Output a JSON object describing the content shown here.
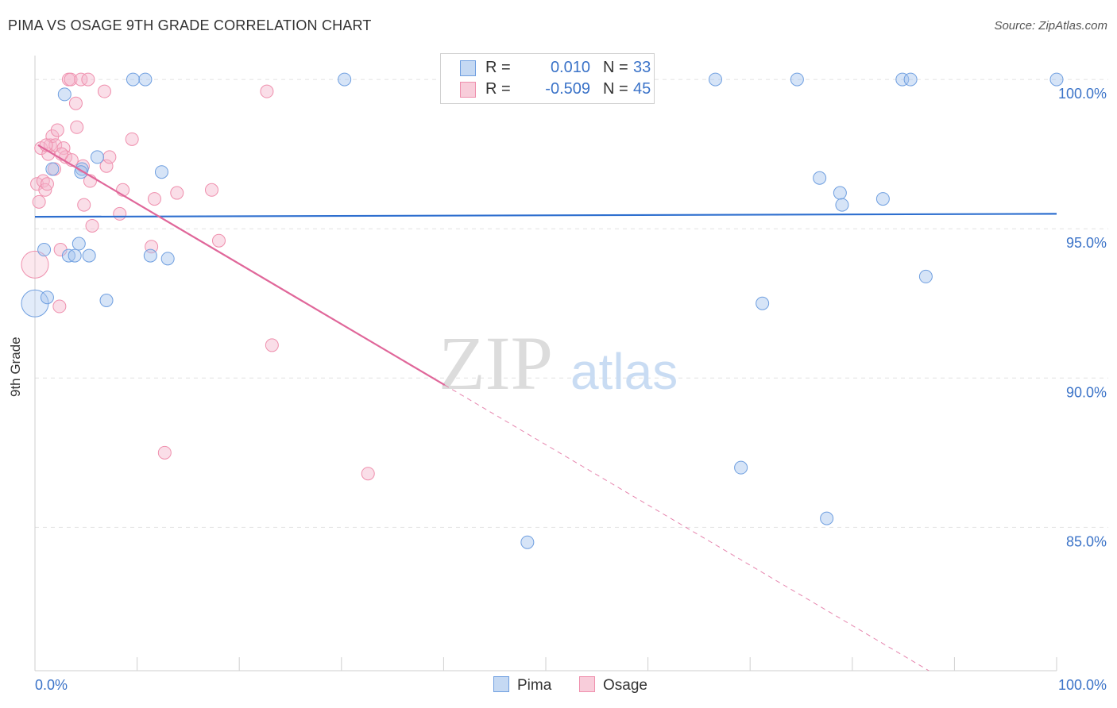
{
  "title": "PIMA VS OSAGE 9TH GRADE CORRELATION CHART",
  "source": "Source: ZipAtlas.com",
  "watermark": {
    "zip": "ZIP",
    "atlas": "atlas"
  },
  "legend": {
    "pima": {
      "r_label": "R =",
      "r_value": "0.010",
      "n_label": "N =",
      "n_value": "33"
    },
    "osage": {
      "r_label": "R =",
      "r_value": "-0.509",
      "n_label": "N =",
      "n_value": "45"
    }
  },
  "chart_data": {
    "type": "scatter",
    "title": "PIMA VS OSAGE 9TH GRADE CORRELATION CHART",
    "xlabel": "",
    "ylabel": "9th Grade",
    "xlim": [
      0,
      100
    ],
    "ylim": [
      80.2,
      100.8
    ],
    "x_tick_labels": [
      "0.0%",
      "100.0%"
    ],
    "y_ticks": [
      {
        "value": 100,
        "label": "100.0%"
      },
      {
        "value": 95,
        "label": "95.0%"
      },
      {
        "value": 90,
        "label": "90.0%"
      },
      {
        "value": 85,
        "label": "85.0%"
      }
    ],
    "colors": {
      "pima": "#6f9fe0",
      "osage": "#ef8fad",
      "pima_line": "#2e6fcf",
      "osage_line": "#e0679a"
    },
    "series": [
      {
        "name": "Pima",
        "trend": {
          "x0": 0,
          "y0": 95.4,
          "x1": 100,
          "y1": 95.5,
          "dash_from": null
        },
        "points": [
          {
            "x": 0.0,
            "y": 92.5,
            "big": true
          },
          {
            "x": 0.9,
            "y": 94.3
          },
          {
            "x": 1.2,
            "y": 92.7
          },
          {
            "x": 2.9,
            "y": 99.5
          },
          {
            "x": 1.7,
            "y": 97.0
          },
          {
            "x": 4.6,
            "y": 97.0
          },
          {
            "x": 3.3,
            "y": 94.1
          },
          {
            "x": 3.9,
            "y": 94.1
          },
          {
            "x": 5.3,
            "y": 94.1
          },
          {
            "x": 6.1,
            "y": 97.4
          },
          {
            "x": 4.3,
            "y": 94.5
          },
          {
            "x": 7.0,
            "y": 92.6
          },
          {
            "x": 9.6,
            "y": 100.0
          },
          {
            "x": 10.8,
            "y": 100.0
          },
          {
            "x": 11.3,
            "y": 94.1
          },
          {
            "x": 12.4,
            "y": 96.9
          },
          {
            "x": 13.0,
            "y": 94.0
          },
          {
            "x": 30.3,
            "y": 100.0
          },
          {
            "x": 48.2,
            "y": 84.5
          },
          {
            "x": 66.6,
            "y": 100.0
          },
          {
            "x": 69.1,
            "y": 87.0
          },
          {
            "x": 71.2,
            "y": 92.5
          },
          {
            "x": 74.6,
            "y": 100.0
          },
          {
            "x": 76.8,
            "y": 96.7
          },
          {
            "x": 77.5,
            "y": 85.3
          },
          {
            "x": 78.8,
            "y": 96.2
          },
          {
            "x": 79.0,
            "y": 95.8
          },
          {
            "x": 83.0,
            "y": 96.0
          },
          {
            "x": 84.9,
            "y": 100.0
          },
          {
            "x": 85.7,
            "y": 100.0
          },
          {
            "x": 87.2,
            "y": 93.4
          },
          {
            "x": 100.0,
            "y": 100.0
          },
          {
            "x": 4.5,
            "y": 96.9
          }
        ]
      },
      {
        "name": "Osage",
        "trend": {
          "x0": 0.3,
          "y0": 97.8,
          "x1": 87.5,
          "y1": 80.2,
          "dash_from": 40.1
        },
        "points": [
          {
            "x": 0.0,
            "y": 93.8,
            "big": true
          },
          {
            "x": 0.2,
            "y": 96.5
          },
          {
            "x": 0.4,
            "y": 95.9
          },
          {
            "x": 0.6,
            "y": 97.7
          },
          {
            "x": 0.8,
            "y": 96.6
          },
          {
            "x": 1.0,
            "y": 96.3
          },
          {
            "x": 1.2,
            "y": 96.5
          },
          {
            "x": 1.3,
            "y": 97.5
          },
          {
            "x": 1.5,
            "y": 97.8
          },
          {
            "x": 1.7,
            "y": 98.1
          },
          {
            "x": 1.9,
            "y": 97.0
          },
          {
            "x": 2.0,
            "y": 97.8
          },
          {
            "x": 2.2,
            "y": 98.3
          },
          {
            "x": 2.4,
            "y": 92.4
          },
          {
            "x": 2.5,
            "y": 94.3
          },
          {
            "x": 2.8,
            "y": 97.7
          },
          {
            "x": 3.0,
            "y": 97.4
          },
          {
            "x": 3.3,
            "y": 100.0
          },
          {
            "x": 3.5,
            "y": 100.0
          },
          {
            "x": 3.6,
            "y": 97.3
          },
          {
            "x": 4.0,
            "y": 99.2
          },
          {
            "x": 4.1,
            "y": 98.4
          },
          {
            "x": 4.5,
            "y": 100.0
          },
          {
            "x": 4.7,
            "y": 97.1
          },
          {
            "x": 4.8,
            "y": 95.8
          },
          {
            "x": 5.2,
            "y": 100.0
          },
          {
            "x": 5.4,
            "y": 96.6
          },
          {
            "x": 5.6,
            "y": 95.1
          },
          {
            "x": 6.8,
            "y": 99.6
          },
          {
            "x": 7.0,
            "y": 97.1
          },
          {
            "x": 7.3,
            "y": 97.4
          },
          {
            "x": 8.3,
            "y": 95.5
          },
          {
            "x": 8.6,
            "y": 96.3
          },
          {
            "x": 9.5,
            "y": 98.0
          },
          {
            "x": 11.4,
            "y": 94.4
          },
          {
            "x": 11.7,
            "y": 96.0
          },
          {
            "x": 12.7,
            "y": 87.5
          },
          {
            "x": 13.9,
            "y": 96.2
          },
          {
            "x": 17.3,
            "y": 96.3
          },
          {
            "x": 18.0,
            "y": 94.6
          },
          {
            "x": 22.7,
            "y": 99.6
          },
          {
            "x": 23.2,
            "y": 91.1
          },
          {
            "x": 32.6,
            "y": 86.8
          },
          {
            "x": 2.6,
            "y": 97.5
          },
          {
            "x": 1.1,
            "y": 97.8
          }
        ]
      }
    ]
  },
  "bottom_legend": {
    "pima": "Pima",
    "osage": "Osage"
  }
}
